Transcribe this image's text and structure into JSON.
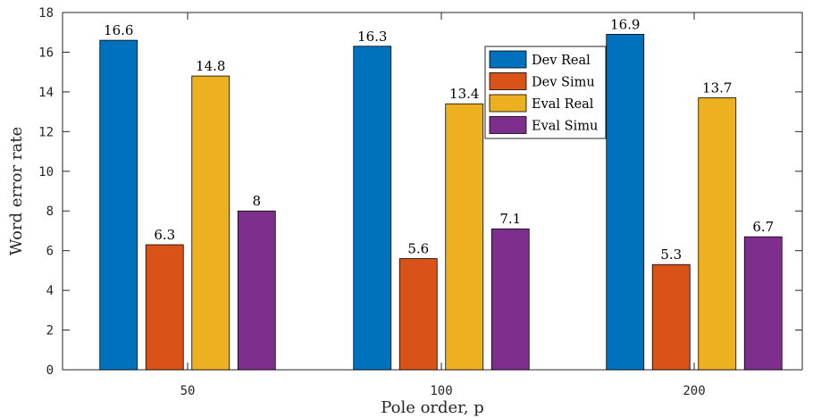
{
  "chart_data": {
    "type": "bar",
    "categories": [
      "50",
      "100",
      "200"
    ],
    "series": [
      {
        "name": "Dev Real",
        "values": [
          16.6,
          16.3,
          16.9
        ],
        "color": "#0072BD"
      },
      {
        "name": "Dev Simu",
        "values": [
          6.3,
          5.6,
          5.3
        ],
        "color": "#D95319"
      },
      {
        "name": "Eval Real",
        "values": [
          14.8,
          13.4,
          13.7
        ],
        "color": "#EDB120"
      },
      {
        "name": "Eval Simu",
        "values": [
          8,
          7.1,
          6.7
        ],
        "color": "#7E2F8E"
      }
    ],
    "data_labels": [
      [
        "16.6",
        "6.3",
        "14.8",
        "8"
      ],
      [
        "16.3",
        "5.6",
        "13.4",
        "7.1"
      ],
      [
        "16.9",
        "5.3",
        "13.7",
        "6.7"
      ]
    ],
    "yticks": [
      "0",
      "2",
      "4",
      "6",
      "8",
      "10",
      "12",
      "14",
      "16",
      "18"
    ],
    "title": "",
    "xlabel": "Pole order, p",
    "ylabel": "Word error rate",
    "ylim": [
      0,
      18
    ],
    "grid": false,
    "legend": "top-right (inside, near center-right)"
  }
}
